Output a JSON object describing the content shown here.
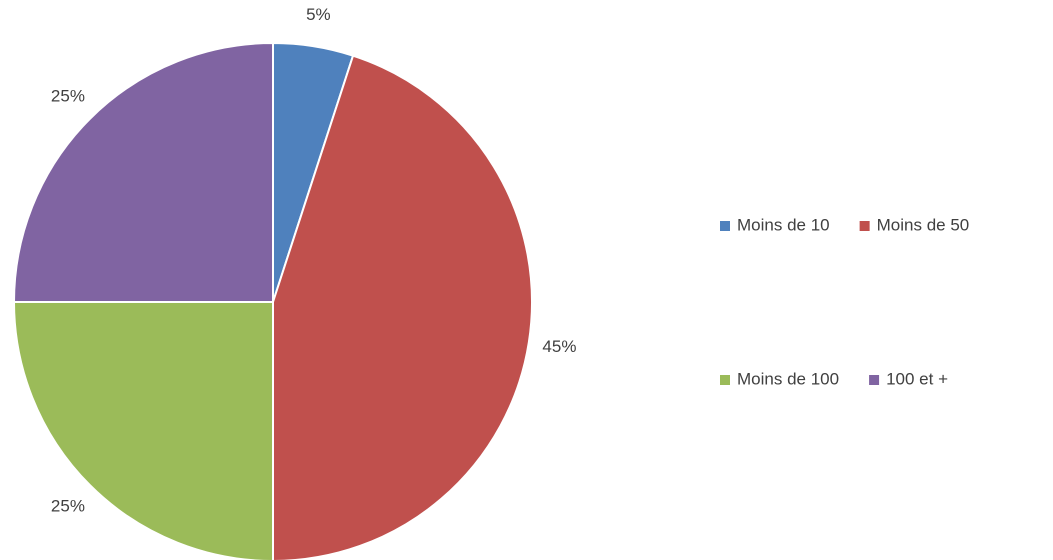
{
  "chart_data": {
    "type": "pie",
    "categories": [
      "Moins de 10",
      "Moins de 50",
      "Moins de 100",
      "100 et +"
    ],
    "values": [
      5,
      45,
      25,
      25
    ],
    "value_labels": [
      "5%",
      "45%",
      "25%",
      "25%"
    ],
    "colors": [
      "#4f81bd",
      "#c0504d",
      "#9bbb59",
      "#8064a2"
    ],
    "legend": "right"
  }
}
